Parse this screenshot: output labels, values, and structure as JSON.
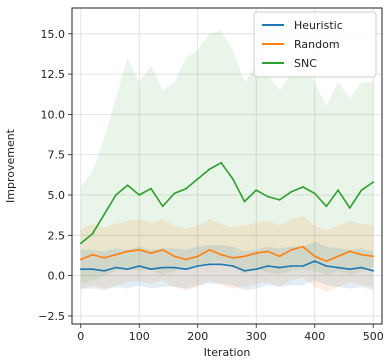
{
  "chart_data": {
    "type": "line",
    "title": "",
    "xlabel": "Iteration",
    "ylabel": "Improvement",
    "xlim": [
      -15,
      515
    ],
    "ylim": [
      -3.0,
      16.6
    ],
    "grid": true,
    "legend_position": "top-right",
    "xticks": [
      0,
      100,
      200,
      300,
      400,
      500
    ],
    "yticks": [
      -2.5,
      0.0,
      2.5,
      5.0,
      7.5,
      10.0,
      12.5,
      15.0
    ],
    "ytick_labels": [
      "−2.5",
      "0.0",
      "2.5",
      "5.0",
      "7.5",
      "10.0",
      "12.5",
      "15.0"
    ],
    "x": [
      0,
      20,
      40,
      60,
      80,
      100,
      120,
      140,
      160,
      180,
      200,
      220,
      240,
      260,
      280,
      300,
      320,
      340,
      360,
      380,
      400,
      420,
      440,
      460,
      480,
      500
    ],
    "series": [
      {
        "name": "Heuristic",
        "color": "#1f77b4",
        "values": [
          0.4,
          0.4,
          0.3,
          0.5,
          0.4,
          0.6,
          0.4,
          0.5,
          0.5,
          0.4,
          0.6,
          0.7,
          0.7,
          0.6,
          0.3,
          0.4,
          0.6,
          0.5,
          0.6,
          0.6,
          0.9,
          0.6,
          0.5,
          0.4,
          0.5,
          0.3
        ],
        "band_lower": [
          -0.8,
          -0.8,
          -0.9,
          -0.7,
          -0.8,
          -0.6,
          -0.8,
          -0.7,
          -0.7,
          -0.8,
          -0.6,
          -0.5,
          -0.5,
          -0.6,
          -0.9,
          -0.8,
          -0.6,
          -0.7,
          -0.6,
          -0.6,
          -0.3,
          -0.6,
          -0.7,
          -0.8,
          -0.7,
          -0.9
        ],
        "band_upper": [
          1.6,
          1.6,
          1.5,
          1.7,
          1.6,
          1.8,
          1.6,
          1.7,
          1.7,
          1.6,
          1.8,
          1.9,
          1.9,
          1.8,
          1.5,
          1.6,
          1.8,
          1.7,
          1.8,
          1.8,
          2.1,
          1.8,
          1.7,
          1.6,
          1.7,
          1.5
        ]
      },
      {
        "name": "Random",
        "color": "#ff7f0e",
        "values": [
          1.0,
          1.3,
          1.1,
          1.3,
          1.5,
          1.6,
          1.4,
          1.6,
          1.2,
          1.0,
          1.2,
          1.6,
          1.3,
          1.1,
          1.2,
          1.4,
          1.5,
          1.2,
          1.6,
          1.8,
          1.2,
          0.9,
          1.2,
          1.5,
          1.3,
          1.2
        ],
        "band_lower": [
          -0.9,
          -0.6,
          -0.8,
          -0.6,
          -0.4,
          -0.3,
          -0.5,
          -0.3,
          -0.7,
          -0.9,
          -0.7,
          -0.3,
          -0.6,
          -0.8,
          -0.7,
          -0.5,
          -0.4,
          -0.7,
          -0.3,
          -0.1,
          -0.7,
          -1.0,
          -0.7,
          -0.4,
          -0.6,
          -0.7
        ],
        "band_upper": [
          2.9,
          3.2,
          3.0,
          3.2,
          3.4,
          3.5,
          3.3,
          3.5,
          3.1,
          2.9,
          3.1,
          3.5,
          3.2,
          3.0,
          3.1,
          3.3,
          3.4,
          3.1,
          3.5,
          3.7,
          3.1,
          2.8,
          3.1,
          3.4,
          3.2,
          3.1
        ]
      },
      {
        "name": "SNC",
        "color": "#2ca02c",
        "values": [
          2.0,
          2.6,
          3.8,
          5.0,
          5.6,
          5.0,
          5.4,
          4.3,
          5.1,
          5.4,
          6.0,
          6.6,
          7.0,
          6.0,
          4.6,
          5.3,
          4.9,
          4.7,
          5.2,
          5.5,
          5.1,
          4.3,
          5.3,
          4.2,
          5.3,
          5.8
        ],
        "band_lower": [
          -0.5,
          -0.3,
          0.0,
          0.3,
          0.5,
          0.3,
          0.4,
          0.0,
          0.3,
          0.4,
          0.6,
          0.8,
          0.9,
          0.6,
          0.1,
          0.4,
          0.2,
          0.1,
          0.3,
          0.4,
          0.3,
          0.0,
          0.3,
          0.0,
          0.3,
          0.5
        ],
        "band_upper": [
          5.5,
          6.5,
          8.5,
          11.0,
          13.5,
          12.0,
          13.0,
          11.5,
          12.0,
          13.5,
          14.0,
          15.0,
          15.2,
          14.0,
          12.0,
          13.0,
          12.5,
          11.5,
          12.5,
          13.0,
          12.0,
          10.5,
          12.0,
          11.0,
          12.0,
          12.0
        ]
      }
    ]
  }
}
